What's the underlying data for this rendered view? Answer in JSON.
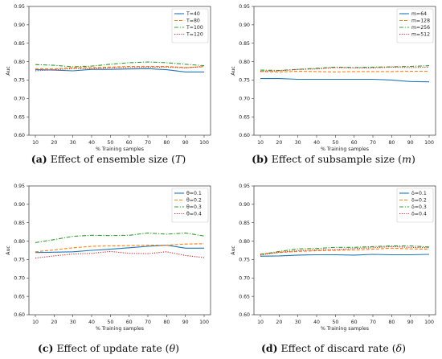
{
  "chart_data": [
    {
      "type": "line",
      "ylabel": "Auc",
      "xlabel": "% Training samples",
      "x": [
        10,
        20,
        30,
        40,
        50,
        60,
        70,
        80,
        90,
        100
      ],
      "ylim": [
        0.6,
        0.95
      ],
      "yticks": [
        "0.60",
        "0.65",
        "0.70",
        "0.75",
        "0.80",
        "0.85",
        "0.90",
        "0.95"
      ],
      "xticks": [
        "10",
        "20",
        "30",
        "40",
        "50",
        "60",
        "70",
        "80",
        "90",
        "100"
      ],
      "legend_position": "top-right",
      "series": [
        {
          "name": "T=40",
          "color": "#1f77b4",
          "dash": "solid",
          "values": [
            0.778,
            0.777,
            0.775,
            0.779,
            0.779,
            0.78,
            0.781,
            0.778,
            0.772,
            0.772
          ]
        },
        {
          "name": "T=80",
          "color": "#ff7f0e",
          "dash": "dashed",
          "values": [
            0.781,
            0.78,
            0.784,
            0.784,
            0.785,
            0.787,
            0.787,
            0.787,
            0.784,
            0.786
          ]
        },
        {
          "name": "T=100",
          "color": "#2ca02c",
          "dash": "dashdot",
          "values": [
            0.792,
            0.79,
            0.786,
            0.788,
            0.793,
            0.797,
            0.799,
            0.797,
            0.793,
            0.789
          ]
        },
        {
          "name": "T=120",
          "color": "#d62728",
          "dash": "dotted",
          "values": [
            0.775,
            0.778,
            0.781,
            0.781,
            0.783,
            0.784,
            0.785,
            0.785,
            0.783,
            0.787
          ]
        }
      ],
      "caption": {
        "label": "(a)",
        "text": "Effect of ensemble size (",
        "symbol": "T",
        "end": ")"
      }
    },
    {
      "type": "line",
      "ylabel": "Auc",
      "xlabel": "% Training samples",
      "x": [
        10,
        20,
        30,
        40,
        50,
        60,
        70,
        80,
        90,
        100
      ],
      "ylim": [
        0.6,
        0.95
      ],
      "yticks": [
        "0.60",
        "0.65",
        "0.70",
        "0.75",
        "0.80",
        "0.85",
        "0.90",
        "0.95"
      ],
      "xticks": [
        "10",
        "20",
        "30",
        "40",
        "50",
        "60",
        "70",
        "80",
        "90",
        "100"
      ],
      "legend_position": "top-right",
      "series": [
        {
          "name": "m=64",
          "color": "#1f77b4",
          "dash": "solid",
          "values": [
            0.754,
            0.754,
            0.752,
            0.752,
            0.752,
            0.752,
            0.752,
            0.75,
            0.746,
            0.745
          ]
        },
        {
          "name": "m=128",
          "color": "#ff7f0e",
          "dash": "dashed",
          "values": [
            0.773,
            0.772,
            0.774,
            0.773,
            0.772,
            0.773,
            0.773,
            0.773,
            0.774,
            0.774
          ]
        },
        {
          "name": "m=256",
          "color": "#2ca02c",
          "dash": "dashdot",
          "values": [
            0.777,
            0.776,
            0.779,
            0.782,
            0.785,
            0.784,
            0.785,
            0.786,
            0.787,
            0.789
          ]
        },
        {
          "name": "m=512",
          "color": "#d62728",
          "dash": "dotted",
          "values": [
            0.774,
            0.775,
            0.779,
            0.78,
            0.784,
            0.783,
            0.783,
            0.785,
            0.784,
            0.785
          ]
        }
      ],
      "caption": {
        "label": "(b)",
        "text": "Effect of subsample size (",
        "symbol": "m",
        "end": ")"
      }
    },
    {
      "type": "line",
      "ylabel": "Auc",
      "xlabel": "% Training samples",
      "x": [
        10,
        20,
        30,
        40,
        50,
        60,
        70,
        80,
        90,
        100
      ],
      "ylim": [
        0.6,
        0.95
      ],
      "yticks": [
        "0.60",
        "0.65",
        "0.70",
        "0.75",
        "0.80",
        "0.85",
        "0.90",
        "0.95"
      ],
      "xticks": [
        "10",
        "20",
        "30",
        "40",
        "50",
        "60",
        "70",
        "80",
        "90",
        "100"
      ],
      "legend_position": "top-right",
      "series": [
        {
          "name": "θ=0.1",
          "color": "#1f77b4",
          "dash": "solid",
          "values": [
            0.769,
            0.77,
            0.771,
            0.775,
            0.778,
            0.782,
            0.786,
            0.789,
            0.781,
            0.781
          ]
        },
        {
          "name": "θ=0.2",
          "color": "#ff7f0e",
          "dash": "dashed",
          "values": [
            0.771,
            0.776,
            0.782,
            0.786,
            0.787,
            0.788,
            0.789,
            0.789,
            0.792,
            0.793
          ]
        },
        {
          "name": "θ=0.3",
          "color": "#2ca02c",
          "dash": "dashdot",
          "values": [
            0.796,
            0.804,
            0.813,
            0.816,
            0.815,
            0.816,
            0.822,
            0.819,
            0.822,
            0.814
          ]
        },
        {
          "name": "θ=0.4",
          "color": "#d62728",
          "dash": "dotted",
          "values": [
            0.754,
            0.76,
            0.765,
            0.767,
            0.772,
            0.767,
            0.766,
            0.771,
            0.761,
            0.755
          ]
        }
      ],
      "caption": {
        "label": "(c)",
        "text": "Effect of update rate (",
        "symbol": "θ",
        "end": ")"
      }
    },
    {
      "type": "line",
      "ylabel": "Auc",
      "xlabel": "% Training samples",
      "x": [
        10,
        20,
        30,
        40,
        50,
        60,
        70,
        80,
        90,
        100
      ],
      "ylim": [
        0.6,
        0.95
      ],
      "yticks": [
        "0.60",
        "0.65",
        "0.70",
        "0.75",
        "0.80",
        "0.85",
        "0.90",
        "0.95"
      ],
      "xticks": [
        "10",
        "20",
        "30",
        "40",
        "50",
        "60",
        "70",
        "80",
        "90",
        "100"
      ],
      "legend_position": "top-right",
      "series": [
        {
          "name": "δ=0.1",
          "color": "#1f77b4",
          "dash": "solid",
          "values": [
            0.759,
            0.76,
            0.762,
            0.763,
            0.763,
            0.762,
            0.764,
            0.763,
            0.763,
            0.764
          ]
        },
        {
          "name": "δ=0.2",
          "color": "#ff7f0e",
          "dash": "dashed",
          "values": [
            0.765,
            0.769,
            0.772,
            0.774,
            0.775,
            0.776,
            0.778,
            0.781,
            0.779,
            0.778
          ]
        },
        {
          "name": "δ=0.3",
          "color": "#2ca02c",
          "dash": "dashdot",
          "values": [
            0.764,
            0.772,
            0.779,
            0.78,
            0.783,
            0.783,
            0.785,
            0.787,
            0.787,
            0.784
          ]
        },
        {
          "name": "δ=0.4",
          "color": "#d62728",
          "dash": "dotted",
          "values": [
            0.762,
            0.77,
            0.774,
            0.776,
            0.777,
            0.78,
            0.782,
            0.785,
            0.783,
            0.782
          ]
        }
      ],
      "caption": {
        "label": "(d)",
        "text": "Effect of discard rate (",
        "symbol": "δ",
        "end": ")"
      }
    }
  ]
}
